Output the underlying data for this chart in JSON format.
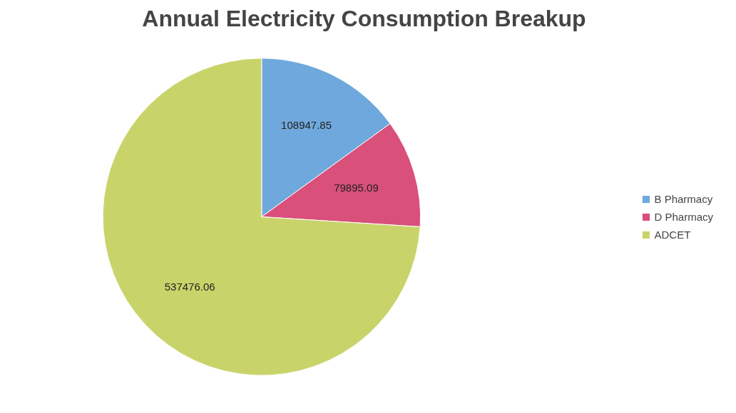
{
  "chart_data": {
    "type": "pie",
    "title": "Annual Electricity Consumption Breakup",
    "categories": [
      "B Pharmacy",
      "D Pharmacy",
      "ADCET"
    ],
    "values": [
      108947.85,
      79895.09,
      537476.06
    ],
    "colors": [
      "#6fa8dc",
      "#d9507a",
      "#c8d46a"
    ],
    "data_labels": true,
    "legend": "right"
  }
}
